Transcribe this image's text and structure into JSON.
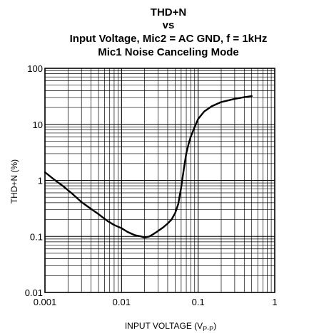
{
  "chart_data": {
    "type": "line",
    "title_lines": [
      "THD+N",
      "vs",
      "Input Voltage, Mic2 = AC GND, f = 1kHz",
      "Mic1 Noise Canceling Mode"
    ],
    "xlabel_main": "INPUT VOLTAGE (V",
    "xlabel_sub": "P-P",
    "xlabel_close": ")",
    "ylabel": "THD+N (%)",
    "xscale": "log",
    "yscale": "log",
    "xlim": [
      0.001,
      1
    ],
    "ylim": [
      0.01,
      100
    ],
    "x_ticks": [
      "0.001",
      "0.01",
      "0.1",
      "1"
    ],
    "y_ticks": [
      "0.01",
      "0.1",
      "1",
      "10",
      "100"
    ],
    "grid": true,
    "series": [
      {
        "color": "#000000",
        "x": [
          0.001,
          0.0013,
          0.0017,
          0.0022,
          0.003,
          0.004,
          0.005,
          0.0065,
          0.008,
          0.01,
          0.012,
          0.015,
          0.018,
          0.02,
          0.023,
          0.026,
          0.03,
          0.035,
          0.04,
          0.045,
          0.05,
          0.055,
          0.06,
          0.065,
          0.07,
          0.075,
          0.08,
          0.09,
          0.1,
          0.12,
          0.15,
          0.2,
          0.3,
          0.4,
          0.5
        ],
        "y": [
          1.4,
          1.05,
          0.8,
          0.6,
          0.41,
          0.31,
          0.25,
          0.19,
          0.16,
          0.14,
          0.12,
          0.105,
          0.1,
          0.095,
          0.1,
          0.11,
          0.125,
          0.145,
          0.17,
          0.2,
          0.26,
          0.38,
          0.75,
          1.6,
          3.0,
          4.5,
          6.0,
          9.0,
          12.5,
          17.0,
          21.0,
          25.0,
          28.5,
          30.5,
          32.0
        ]
      }
    ]
  }
}
